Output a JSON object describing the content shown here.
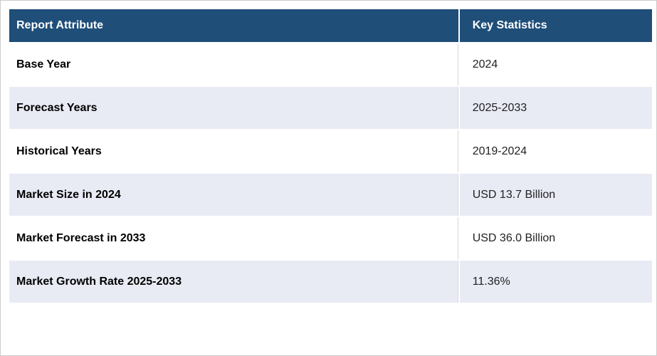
{
  "table": {
    "columns": [
      {
        "label": "Report Attribute"
      },
      {
        "label": "Key Statistics"
      }
    ],
    "rows": [
      {
        "attribute": "Base Year",
        "value": "2024"
      },
      {
        "attribute": "Forecast Years",
        "value": "2025-2033"
      },
      {
        "attribute": "Historical Years",
        "value": "2019-2024"
      },
      {
        "attribute": "Market Size in 2024",
        "value": "USD 13.7 Billion"
      },
      {
        "attribute": "Market Forecast in 2033",
        "value": "USD 36.0 Billion"
      },
      {
        "attribute": "Market Growth Rate 2025-2033",
        "value": "11.36%"
      }
    ],
    "colors": {
      "header_bg": "#1F4E79",
      "header_text": "#FFFFFF",
      "row_bg": "#FFFFFF",
      "row_alt_bg": "#E8EAF4",
      "outer_border": "#CCCCCC",
      "cell_divider": "#D8D8D8",
      "attribute_text": "#000000",
      "value_text": "#222222"
    }
  }
}
